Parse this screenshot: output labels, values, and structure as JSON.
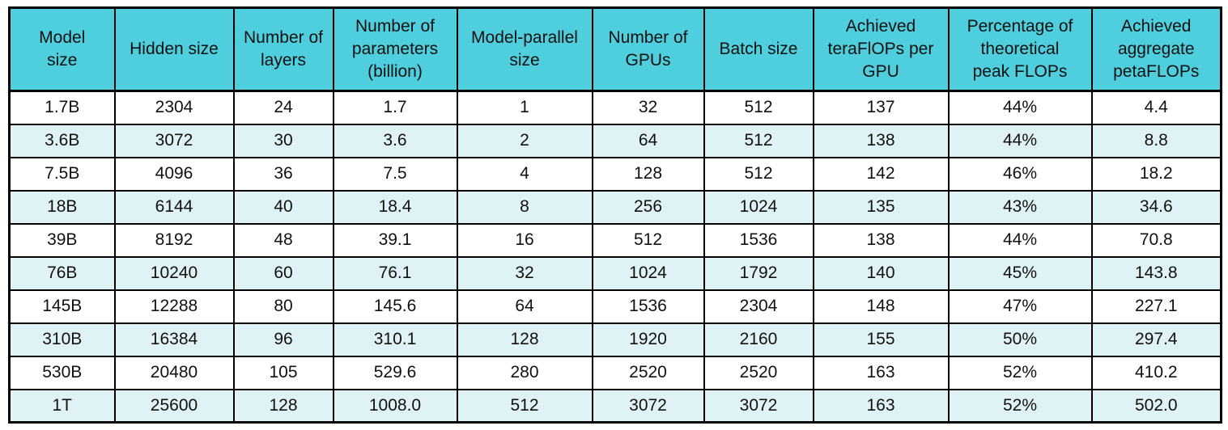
{
  "colors": {
    "header_bg": "#4FCEDE",
    "row_alt_bg": "#DFF3F7",
    "border": "#000000",
    "text": "#111111"
  },
  "chart_data": {
    "type": "table",
    "title": "",
    "columns": [
      "Model size",
      "Hidden size",
      "Number of layers",
      "Number of parameters (billion)",
      "Model-parallel size",
      "Number of GPUs",
      "Batch size",
      "Achieved teraFlOPs per GPU",
      "Percentage of theoretical peak FLOPs",
      "Achieved aggregate petaFLOPs"
    ],
    "header_display": [
      "Model\nsize",
      "Hidden size",
      "Number of\nlayers",
      "Number of\nparameters\n(billion)",
      "Model-parallel\nsize",
      "Number of\nGPUs",
      "Batch size",
      "Achieved\nteraFlOPs per\nGPU",
      "Percentage of\ntheoretical\npeak FLOPs",
      "Achieved\naggregate\npetaFLOPs"
    ],
    "rows": [
      [
        "1.7B",
        "2304",
        "24",
        "1.7",
        "1",
        "32",
        "512",
        "137",
        "44%",
        "4.4"
      ],
      [
        "3.6B",
        "3072",
        "30",
        "3.6",
        "2",
        "64",
        "512",
        "138",
        "44%",
        "8.8"
      ],
      [
        "7.5B",
        "4096",
        "36",
        "7.5",
        "4",
        "128",
        "512",
        "142",
        "46%",
        "18.2"
      ],
      [
        "18B",
        "6144",
        "40",
        "18.4",
        "8",
        "256",
        "1024",
        "135",
        "43%",
        "34.6"
      ],
      [
        "39B",
        "8192",
        "48",
        "39.1",
        "16",
        "512",
        "1536",
        "138",
        "44%",
        "70.8"
      ],
      [
        "76B",
        "10240",
        "60",
        "76.1",
        "32",
        "1024",
        "1792",
        "140",
        "45%",
        "143.8"
      ],
      [
        "145B",
        "12288",
        "80",
        "145.6",
        "64",
        "1536",
        "2304",
        "148",
        "47%",
        "227.1"
      ],
      [
        "310B",
        "16384",
        "96",
        "310.1",
        "128",
        "1920",
        "2160",
        "155",
        "50%",
        "297.4"
      ],
      [
        "530B",
        "20480",
        "105",
        "529.6",
        "280",
        "2520",
        "2520",
        "163",
        "52%",
        "410.2"
      ],
      [
        "1T",
        "25600",
        "128",
        "1008.0",
        "512",
        "3072",
        "3072",
        "163",
        "52%",
        "502.0"
      ]
    ]
  }
}
